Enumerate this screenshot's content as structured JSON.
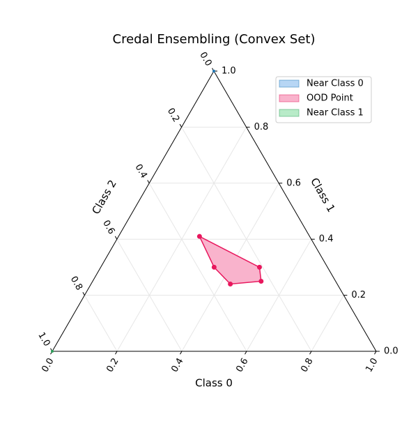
{
  "chart_data": {
    "type": "ternary",
    "title": "Credal Ensembling (Convex Set)",
    "axes": [
      {
        "label": "Class 0",
        "ticks": [
          {
            "value": 0,
            "label": "0.0"
          },
          {
            "value": 0.2,
            "label": "0.2"
          },
          {
            "value": 0.4,
            "label": "0.4"
          },
          {
            "value": 0.6,
            "label": "0.6"
          },
          {
            "value": 0.8,
            "label": "0.8"
          },
          {
            "value": 1,
            "label": "1.0"
          }
        ]
      },
      {
        "label": "Class 1",
        "ticks": [
          {
            "value": 0,
            "label": "0.0"
          },
          {
            "value": 0.2,
            "label": "0.2"
          },
          {
            "value": 0.4,
            "label": "0.4"
          },
          {
            "value": 0.6,
            "label": "0.6"
          },
          {
            "value": 0.8,
            "label": "0.8"
          },
          {
            "value": 1,
            "label": "1.0"
          }
        ]
      },
      {
        "label": "Class 2",
        "ticks": [
          {
            "value": 0,
            "label": "0.0"
          },
          {
            "value": 0.2,
            "label": "0.2"
          },
          {
            "value": 0.4,
            "label": "0.4"
          },
          {
            "value": 0.6,
            "label": "0.6"
          },
          {
            "value": 0.8,
            "label": "0.8"
          },
          {
            "value": 1,
            "label": "1.0"
          }
        ]
      }
    ],
    "grid": true,
    "legend": "upper right",
    "series": [
      {
        "name": "Near Class 0",
        "color": "#b7d6f4",
        "edge_color": "#1f77b4",
        "points": [
          [
            0,
            1,
            0
          ]
        ]
      },
      {
        "name": "OOD Point",
        "color": "#f9b3cc",
        "edge_color": "#e8175d",
        "points": [
          [
            0.25,
            0.41,
            0.34
          ],
          [
            0.35,
            0.3,
            0.35
          ],
          [
            0.43,
            0.24,
            0.33
          ],
          [
            0.52,
            0.25,
            0.23
          ],
          [
            0.49,
            0.3,
            0.21
          ]
        ]
      },
      {
        "name": "Near Class 1",
        "color": "#b8ebc8",
        "edge_color": "#2ca05a",
        "points": [
          [
            0,
            0,
            1
          ]
        ]
      }
    ]
  }
}
